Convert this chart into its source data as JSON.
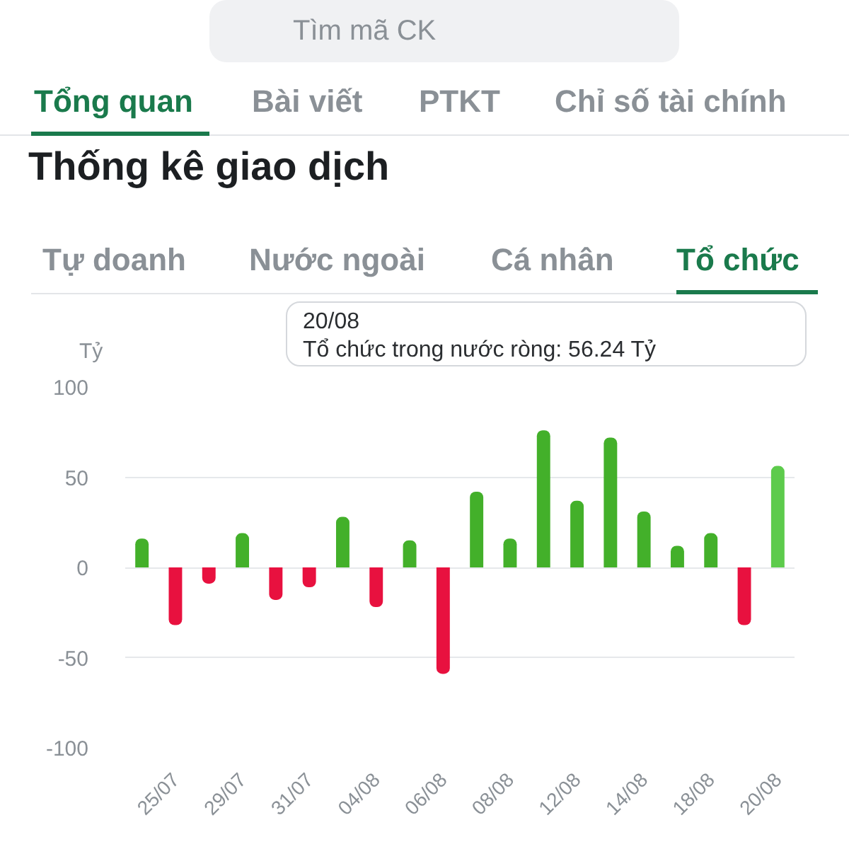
{
  "chart_data": {
    "type": "bar",
    "title": "Thống kê giao dịch",
    "ylabel": "Tỷ",
    "categories": [
      null,
      "25/07",
      null,
      "29/07",
      null,
      "31/07",
      null,
      "04/08",
      null,
      "06/08",
      null,
      "08/08",
      null,
      "12/08",
      null,
      "14/08",
      null,
      "18/08",
      null,
      "20/08"
    ],
    "values": [
      16,
      -32,
      -9,
      19,
      -18,
      -11,
      28,
      -22,
      15,
      -59,
      42,
      16,
      76,
      37,
      72,
      31,
      12,
      19,
      -32,
      56.24
    ],
    "colors": [
      "#43b02a",
      "#e8113f",
      "#e8113f",
      "#43b02a",
      "#e8113f",
      "#e8113f",
      "#43b02a",
      "#e8113f",
      "#43b02a",
      "#e8113f",
      "#43b02a",
      "#43b02a",
      "#43b02a",
      "#43b02a",
      "#43b02a",
      "#43b02a",
      "#43b02a",
      "#43b02a",
      "#e8113f",
      "#5dcb4c"
    ],
    "ylim": [
      -100,
      100
    ],
    "yticks": [
      -100,
      -50,
      0,
      50,
      100
    ],
    "grid": "y",
    "annotations": [
      "Tìm mã CK",
      "Tổng quan",
      "Bài viết",
      "PTKT",
      "Chỉ số tài chính",
      "Tự doanh",
      "Nước ngoài",
      "Cá nhân",
      "Tổ chức",
      "20/08",
      "Tổ chức trong nước ròng: 56.24 Tỷ"
    ]
  }
}
